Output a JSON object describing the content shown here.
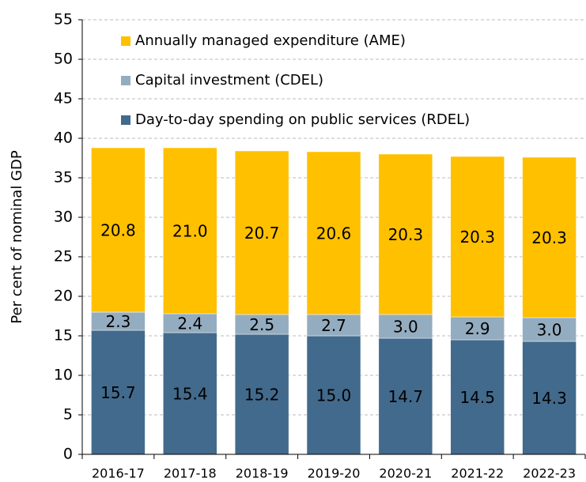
{
  "chart_data": {
    "type": "stacked-bar",
    "y_label": "Per cent of nominal GDP",
    "categories": [
      "2016-17",
      "2017-18",
      "2018-19",
      "2019-20",
      "2020-21",
      "2021-22",
      "2022-23"
    ],
    "series": [
      {
        "name": "Day-to-day spending on public services (RDEL)",
        "color": "#426a8c",
        "values": [
          15.7,
          15.4,
          15.2,
          15.0,
          14.7,
          14.5,
          14.3
        ],
        "value_labels": [
          "15.7",
          "15.4",
          "15.2",
          "15.0",
          "14.7",
          "14.5",
          "14.3"
        ]
      },
      {
        "name": "Capital investment (CDEL)",
        "color": "#94acbf",
        "values": [
          2.3,
          2.4,
          2.5,
          2.7,
          3.0,
          2.9,
          3.0
        ],
        "value_labels": [
          "2.3",
          "2.4",
          "2.5",
          "2.7",
          "3.0",
          "2.9",
          "3.0"
        ]
      },
      {
        "name": "Annually managed expenditure (AME)",
        "color": "#ffc000",
        "values": [
          20.8,
          21.0,
          20.7,
          20.6,
          20.3,
          20.3,
          20.3
        ],
        "value_labels": [
          "20.8",
          "21.0",
          "20.7",
          "20.6",
          "20.3",
          "20.3",
          "20.3"
        ]
      }
    ],
    "ylim": [
      0,
      55
    ],
    "yticks": [
      0,
      5,
      10,
      15,
      20,
      25,
      30,
      35,
      40,
      45,
      50,
      55
    ],
    "grid": true,
    "legend": "top-left"
  }
}
